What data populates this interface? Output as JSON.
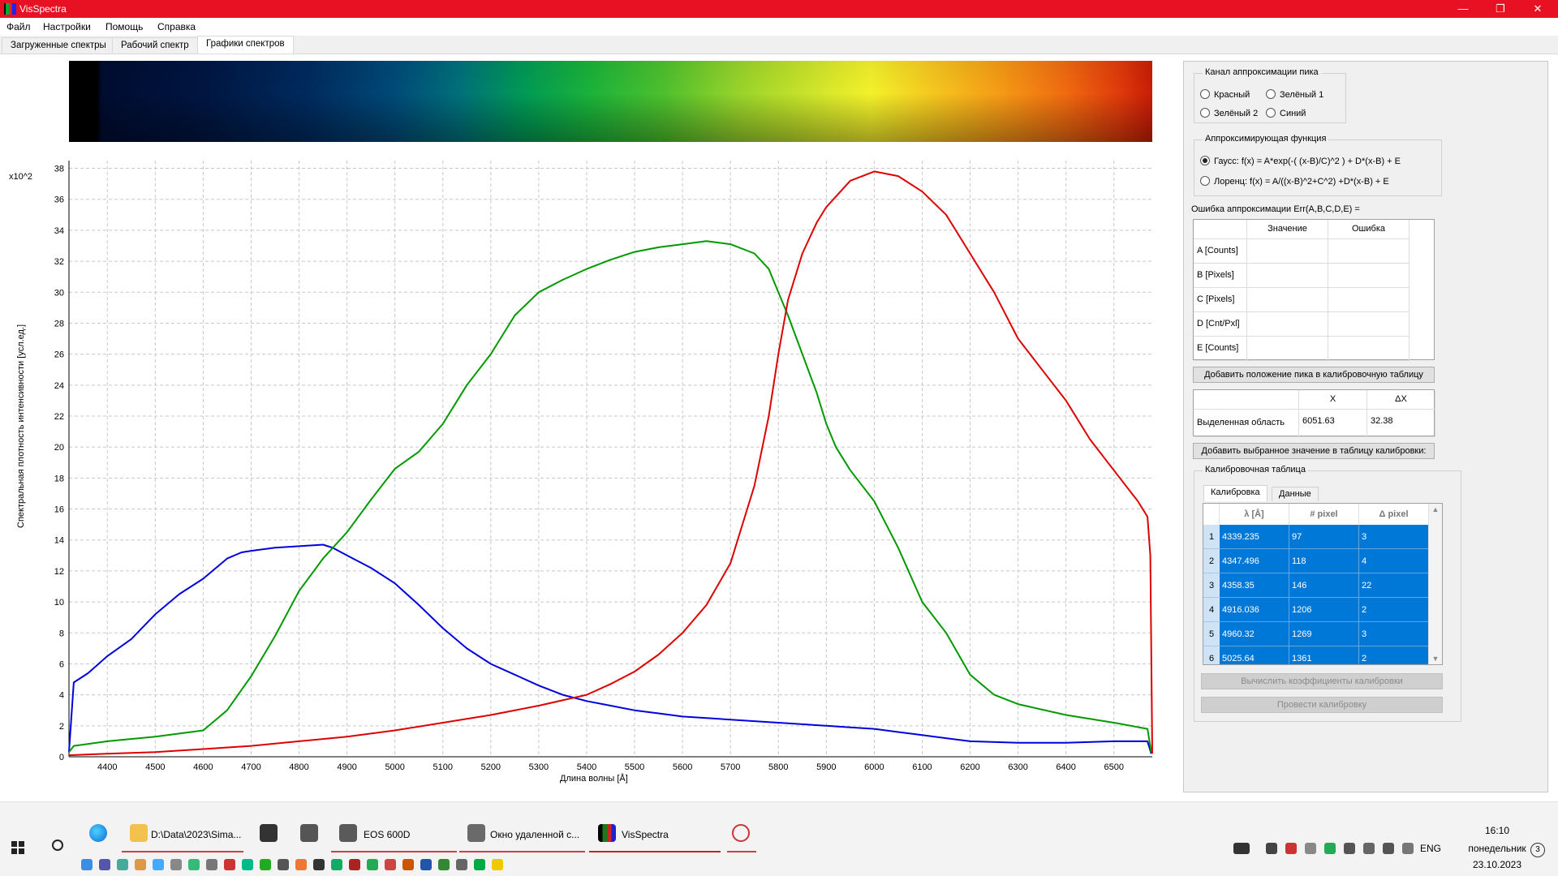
{
  "window": {
    "title": "VisSpectra",
    "minimize": "—",
    "restore": "❐",
    "close": "✕"
  },
  "menu": [
    "Файл",
    "Настройки",
    "Помощь",
    "Справка"
  ],
  "tabs": [
    {
      "label": "Загруженные спектры",
      "active": false
    },
    {
      "label": "Рабочий спектр",
      "active": false
    },
    {
      "label": "Графики спектров",
      "active": true
    }
  ],
  "plot": {
    "y_multiplier": "x10^2",
    "ylabel": "Спектральная плотность интенсивности [усл.ед.]",
    "xlabel": "Длина волны  [Å]"
  },
  "chart_data": {
    "type": "line",
    "xlim": [
      4320,
      6580
    ],
    "ylim": [
      0,
      38.5
    ],
    "x_ticks": [
      4400,
      4500,
      4600,
      4700,
      4800,
      4900,
      5000,
      5100,
      5200,
      5300,
      5400,
      5500,
      5600,
      5700,
      5800,
      5900,
      6000,
      6100,
      6200,
      6300,
      6400,
      6500
    ],
    "y_ticks": [
      0,
      2,
      4,
      6,
      8,
      10,
      12,
      14,
      16,
      18,
      20,
      22,
      24,
      26,
      28,
      30,
      32,
      34,
      36,
      38
    ],
    "grid": true,
    "grid_style": "dashed",
    "series": [
      {
        "color": "#0000dd",
        "x": [
          4320,
          4330,
          4360,
          4400,
          4450,
          4500,
          4550,
          4600,
          4650,
          4680,
          4700,
          4750,
          4800,
          4850,
          4870,
          4900,
          4950,
          5000,
          5050,
          5100,
          5150,
          5200,
          5250,
          5300,
          5350,
          5400,
          5450,
          5500,
          5550,
          5600,
          5650,
          5700,
          5750,
          5800,
          5850,
          5900,
          5950,
          6000,
          6050,
          6100,
          6150,
          6200,
          6300,
          6400,
          6500,
          6570,
          6578
        ],
        "y": [
          0.3,
          4.8,
          5.4,
          6.5,
          7.6,
          9.2,
          10.5,
          11.5,
          12.8,
          13.2,
          13.3,
          13.5,
          13.6,
          13.7,
          13.5,
          13.0,
          12.2,
          11.2,
          9.8,
          8.3,
          7.0,
          6.0,
          5.3,
          4.6,
          4.0,
          3.6,
          3.3,
          3.0,
          2.8,
          2.6,
          2.5,
          2.4,
          2.3,
          2.2,
          2.1,
          2.0,
          1.9,
          1.8,
          1.6,
          1.4,
          1.2,
          1.0,
          0.9,
          0.9,
          1.0,
          1.0,
          0.2
        ]
      },
      {
        "color": "#009900",
        "x": [
          4320,
          4330,
          4400,
          4500,
          4600,
          4650,
          4700,
          4750,
          4800,
          4850,
          4900,
          4950,
          5000,
          5050,
          5100,
          5150,
          5200,
          5250,
          5300,
          5350,
          5400,
          5450,
          5500,
          5550,
          5600,
          5650,
          5700,
          5750,
          5780,
          5800,
          5820,
          5850,
          5880,
          5900,
          5920,
          5950,
          6000,
          6050,
          6100,
          6150,
          6200,
          6250,
          6300,
          6400,
          6500,
          6570,
          6578
        ],
        "y": [
          0.3,
          0.7,
          1.0,
          1.3,
          1.7,
          3.0,
          5.2,
          7.8,
          10.7,
          12.8,
          14.5,
          16.6,
          18.6,
          19.7,
          21.5,
          24.0,
          26.0,
          28.5,
          30.0,
          30.8,
          31.5,
          32.1,
          32.6,
          32.9,
          33.1,
          33.3,
          33.1,
          32.5,
          31.5,
          30.0,
          28.5,
          26.0,
          23.5,
          21.5,
          20.0,
          18.5,
          16.5,
          13.5,
          10.0,
          8.0,
          5.3,
          4.0,
          3.4,
          2.7,
          2.2,
          1.8,
          0.3
        ]
      },
      {
        "color": "#dd0000",
        "x": [
          4320,
          4400,
          4500,
          4600,
          4700,
          4800,
          4900,
          5000,
          5100,
          5200,
          5300,
          5400,
          5450,
          5500,
          5550,
          5600,
          5650,
          5700,
          5720,
          5750,
          5780,
          5800,
          5820,
          5850,
          5880,
          5900,
          5950,
          6000,
          6050,
          6100,
          6150,
          6200,
          6250,
          6300,
          6350,
          6400,
          6450,
          6500,
          6550,
          6570,
          6576,
          6580
        ],
        "y": [
          0.1,
          0.2,
          0.3,
          0.5,
          0.7,
          1.0,
          1.3,
          1.7,
          2.2,
          2.7,
          3.3,
          4.0,
          4.7,
          5.5,
          6.6,
          8.0,
          9.8,
          12.5,
          14.5,
          17.5,
          22.0,
          26.0,
          29.5,
          32.5,
          34.5,
          35.5,
          37.2,
          37.8,
          37.5,
          36.5,
          35.0,
          32.5,
          30.0,
          27.0,
          25.0,
          23.0,
          20.5,
          18.5,
          16.5,
          15.5,
          13.0,
          0.2
        ]
      }
    ]
  },
  "right": {
    "channel_group": "Канал аппроксимации пика",
    "channels": [
      {
        "label": "Красный",
        "checked": false
      },
      {
        "label": "Зелёный 1",
        "checked": false
      },
      {
        "label": "Зелёный 2",
        "checked": false
      },
      {
        "label": "Синий",
        "checked": false
      }
    ],
    "func_group": "Аппроксимирующая функция",
    "functions": [
      {
        "label": "Гаусс: f(x) =  A*exp(-( (x-B)/C)^2 ) + D*(x-B) + E",
        "checked": true
      },
      {
        "label": "Лоренц: f(x) = A/((x-B)^2+C^2) +D*(x-B) + E",
        "checked": false
      }
    ],
    "err_label": "Ошибка аппроксимации Err(A,B,C,D,E) =",
    "params_header": [
      "",
      "Значение",
      "Ошибка"
    ],
    "params": [
      "A [Counts]",
      "B [Pixels]",
      "C [Pixels]",
      "D [Cnt/Pxl]",
      "E [Counts]"
    ],
    "add_peak_btn": "Добавить положение пика в калибровочную таблицу",
    "selection_header": [
      "",
      "X",
      "ΔX"
    ],
    "selection_label": "Выделенная область",
    "selection_x": "6051.63",
    "selection_dx": "32.38",
    "add_value_btn": "Добавить выбранное значение в таблицу калибровки:",
    "cal_group": "Калибровочная таблица",
    "cal_tabs": [
      {
        "label": "Калибровка",
        "active": true
      },
      {
        "label": "Данные",
        "active": false
      }
    ],
    "cal_header": [
      "λ [Å]",
      "# pixel",
      "Δ pixel"
    ],
    "cal_rows": [
      {
        "n": "1",
        "lambda": "4339.235",
        "pixel": "97",
        "dpixel": "3"
      },
      {
        "n": "2",
        "lambda": "4347.496",
        "pixel": "118",
        "dpixel": "4"
      },
      {
        "n": "3",
        "lambda": "4358.35",
        "pixel": "146",
        "dpixel": "22"
      },
      {
        "n": "4",
        "lambda": "4916.036",
        "pixel": "1206",
        "dpixel": "2"
      },
      {
        "n": "5",
        "lambda": "4960.32",
        "pixel": "1269",
        "dpixel": "3"
      },
      {
        "n": "6",
        "lambda": "5025.64",
        "pixel": "1361",
        "dpixel": "2"
      }
    ],
    "calc_btn": "Вычислить коэффициенты калибровки",
    "run_btn": "Провести калибровку"
  },
  "taskbar": {
    "apps": [
      {
        "label": "D:\\Data\\2023\\Sima...",
        "icon": "folder-icon",
        "color": "#f2c14e"
      },
      {
        "label": "EOS 600D",
        "icon": "camera-app-icon",
        "color": "#5a5a5a"
      },
      {
        "label": "Окно удаленной с...",
        "icon": "remote-window-icon",
        "color": "#6a6a6a"
      },
      {
        "label": "VisSpectra",
        "icon": "visspectra-icon",
        "color": "#1a7a1a"
      }
    ],
    "lang": "ENG",
    "time": "16:10",
    "weekday": "понедельник",
    "date": "23.10.2023",
    "notifications": "3"
  }
}
